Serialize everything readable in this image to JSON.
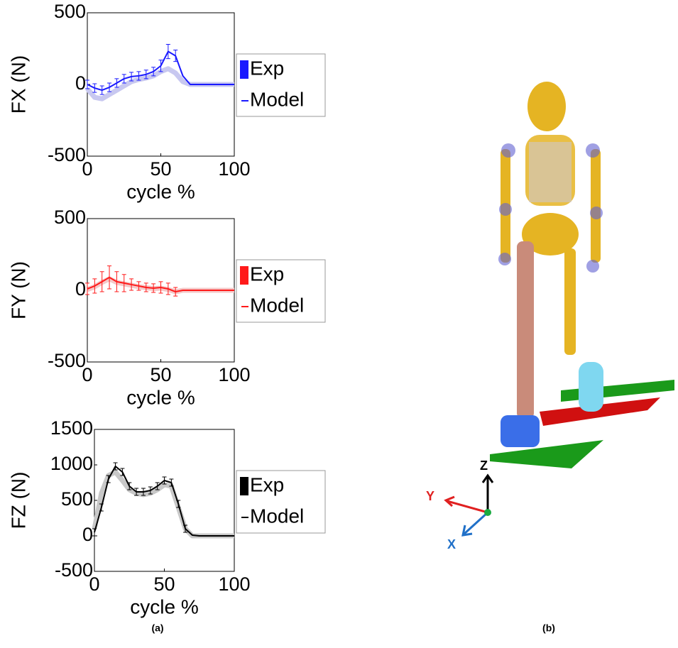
{
  "chart_data": [
    {
      "type": "line",
      "ylabel": "FX (N)",
      "xlabel": "cycle %",
      "x": [
        0,
        5,
        10,
        15,
        20,
        25,
        30,
        35,
        40,
        45,
        50,
        55,
        60,
        65,
        70,
        75,
        80,
        85,
        90,
        95,
        100
      ],
      "xlim": [
        0,
        100
      ],
      "ylim": [
        -500,
        500
      ],
      "xticks": [
        0,
        50,
        100
      ],
      "yticks": [
        -500,
        0,
        500
      ],
      "series": [
        {
          "name": "Exp",
          "color": "#1a1aff",
          "values": [
            0,
            -25,
            -40,
            -20,
            10,
            40,
            55,
            60,
            70,
            90,
            130,
            230,
            200,
            60,
            0,
            0,
            0,
            0,
            0,
            0,
            0
          ],
          "errors": [
            30,
            30,
            30,
            30,
            30,
            30,
            30,
            30,
            30,
            30,
            40,
            50,
            40,
            null,
            null,
            null,
            null,
            null,
            null,
            null,
            null
          ]
        },
        {
          "name": "Model",
          "color": "#c8c8f0",
          "values": [
            -30,
            -90,
            -100,
            -70,
            -40,
            -10,
            20,
            35,
            45,
            60,
            90,
            110,
            80,
            20,
            0,
            0,
            0,
            0,
            0,
            0,
            0
          ]
        }
      ]
    },
    {
      "type": "line",
      "ylabel": "FY (N)",
      "xlabel": "cycle %",
      "x": [
        0,
        5,
        10,
        15,
        20,
        25,
        30,
        35,
        40,
        45,
        50,
        55,
        60,
        65,
        70,
        75,
        80,
        85,
        90,
        95,
        100
      ],
      "xlim": [
        0,
        100
      ],
      "ylim": [
        -500,
        500
      ],
      "xticks": [
        0,
        50,
        100
      ],
      "yticks": [
        -500,
        0,
        500
      ],
      "series": [
        {
          "name": "Exp",
          "color": "#ff1a1a",
          "values": [
            10,
            30,
            60,
            90,
            60,
            50,
            40,
            30,
            20,
            15,
            20,
            10,
            -10,
            0,
            0,
            0,
            0,
            0,
            0,
            0,
            0
          ],
          "errors": [
            40,
            50,
            70,
            80,
            70,
            60,
            40,
            30,
            30,
            30,
            40,
            40,
            30,
            null,
            null,
            null,
            null,
            null,
            null,
            null,
            null
          ]
        },
        {
          "name": "Model",
          "color": "#f4c8c8",
          "values": [
            5,
            25,
            55,
            80,
            55,
            45,
            35,
            25,
            18,
            12,
            15,
            5,
            -10,
            0,
            0,
            0,
            0,
            0,
            0,
            0,
            0
          ]
        }
      ]
    },
    {
      "type": "line",
      "ylabel": "FZ (N)",
      "xlabel": "cycle %",
      "x": [
        0,
        5,
        10,
        15,
        20,
        25,
        30,
        35,
        40,
        45,
        50,
        55,
        60,
        65,
        70,
        75,
        80,
        85,
        90,
        95,
        100
      ],
      "xlim": [
        0,
        100
      ],
      "ylim": [
        -500,
        1500
      ],
      "xticks": [
        0,
        50,
        100
      ],
      "yticks": [
        -500,
        0,
        500,
        1000,
        1500
      ],
      "series": [
        {
          "name": "Exp",
          "color": "#000000",
          "values": [
            50,
            400,
            800,
            980,
            900,
            700,
            620,
            620,
            640,
            700,
            780,
            750,
            450,
            100,
            10,
            0,
            0,
            0,
            0,
            0,
            0
          ],
          "errors": [
            50,
            50,
            50,
            50,
            50,
            50,
            50,
            50,
            50,
            50,
            50,
            50,
            50,
            50,
            null,
            null,
            null,
            null,
            null,
            null,
            null
          ]
        },
        {
          "name": "Model",
          "color": "#c8c8c8",
          "values": [
            100,
            600,
            850,
            900,
            780,
            650,
            600,
            580,
            600,
            650,
            720,
            700,
            400,
            100,
            0,
            0,
            0,
            0,
            0,
            0,
            0
          ]
        }
      ]
    }
  ],
  "axes_labels": {
    "z": "Z",
    "y": "Y",
    "x": "X"
  },
  "captions": [
    "(a)",
    "(b)"
  ]
}
